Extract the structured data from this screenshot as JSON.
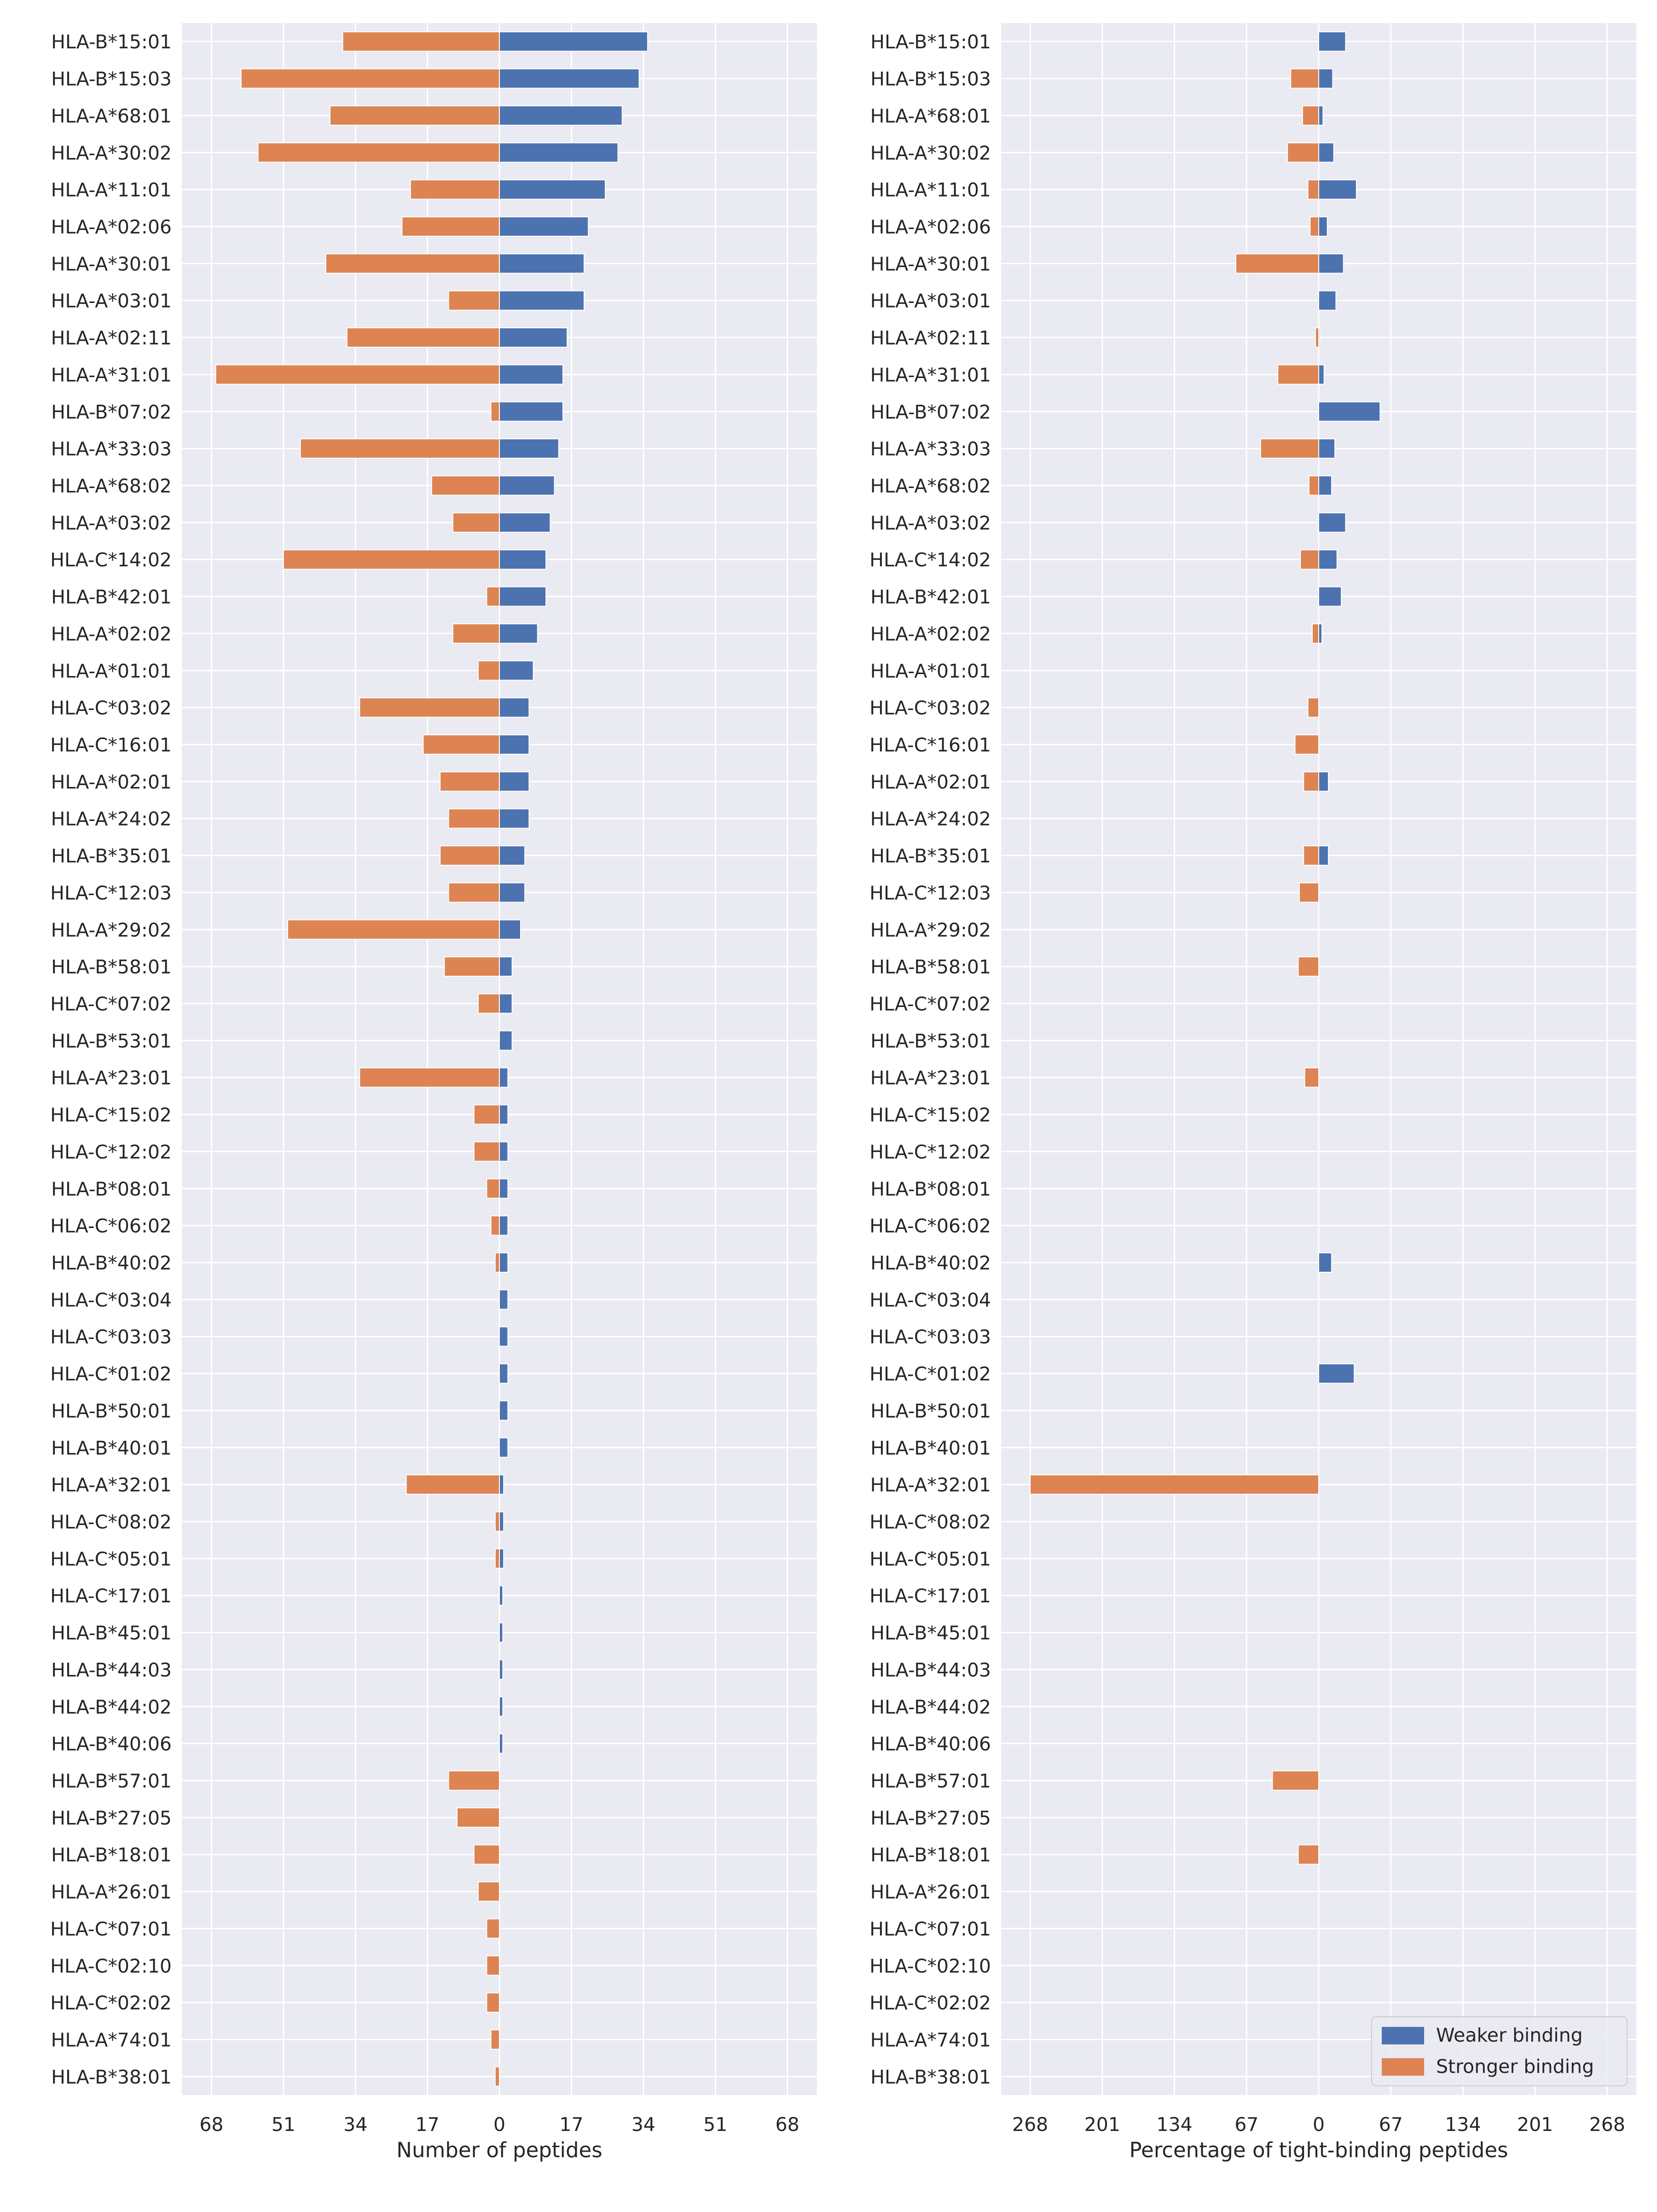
{
  "chart_data": [
    {
      "type": "bar",
      "orientation": "horizontal-diverging",
      "xlabel": "Number of peptides",
      "xlim": [
        -75,
        75
      ],
      "xticks": [
        -68,
        -51,
        -34,
        -17,
        0,
        17,
        34,
        51,
        68
      ],
      "xtick_labels": [
        "68",
        "51",
        "34",
        "17",
        "0",
        "17",
        "34",
        "51",
        "68"
      ],
      "grid": true,
      "categories": [
        "HLA-B*15:01",
        "HLA-B*15:03",
        "HLA-A*68:01",
        "HLA-A*30:02",
        "HLA-A*11:01",
        "HLA-A*02:06",
        "HLA-A*30:01",
        "HLA-A*03:01",
        "HLA-A*02:11",
        "HLA-A*31:01",
        "HLA-B*07:02",
        "HLA-A*33:03",
        "HLA-A*68:02",
        "HLA-A*03:02",
        "HLA-C*14:02",
        "HLA-B*42:01",
        "HLA-A*02:02",
        "HLA-A*01:01",
        "HLA-C*03:02",
        "HLA-C*16:01",
        "HLA-A*02:01",
        "HLA-A*24:02",
        "HLA-B*35:01",
        "HLA-C*12:03",
        "HLA-A*29:02",
        "HLA-B*58:01",
        "HLA-C*07:02",
        "HLA-B*53:01",
        "HLA-A*23:01",
        "HLA-C*15:02",
        "HLA-C*12:02",
        "HLA-B*08:01",
        "HLA-C*06:02",
        "HLA-B*40:02",
        "HLA-C*03:04",
        "HLA-C*03:03",
        "HLA-C*01:02",
        "HLA-B*50:01",
        "HLA-B*40:01",
        "HLA-A*32:01",
        "HLA-C*08:02",
        "HLA-C*05:01",
        "HLA-C*17:01",
        "HLA-B*45:01",
        "HLA-B*44:03",
        "HLA-B*44:02",
        "HLA-B*40:06",
        "HLA-B*57:01",
        "HLA-B*27:05",
        "HLA-B*18:01",
        "HLA-A*26:01",
        "HLA-C*07:01",
        "HLA-C*02:10",
        "HLA-C*02:02",
        "HLA-A*74:01",
        "HLA-B*38:01"
      ],
      "series": [
        {
          "name": "Weaker binding",
          "color": "#4c72b0",
          "values": [
            35,
            33,
            29,
            28,
            25,
            21,
            20,
            20,
            16,
            15,
            15,
            14,
            13,
            12,
            11,
            11,
            9,
            8,
            7,
            7,
            7,
            7,
            6,
            6,
            5,
            3,
            3,
            3,
            2,
            2,
            2,
            2,
            2,
            2,
            2,
            2,
            2,
            2,
            2,
            1,
            1,
            1,
            0.8,
            0.8,
            0.8,
            0.8,
            0.8,
            0,
            0,
            0,
            0,
            0,
            0,
            0,
            0,
            0
          ]
        },
        {
          "name": "Stronger binding",
          "color": "#dd8452",
          "values": [
            37,
            61,
            40,
            57,
            21,
            23,
            41,
            12,
            36,
            67,
            2,
            47,
            16,
            11,
            51,
            3,
            11,
            5,
            33,
            18,
            14,
            12,
            14,
            12,
            50,
            13,
            5,
            0,
            33,
            6,
            6,
            3,
            2,
            1,
            0,
            0,
            0,
            0,
            0,
            22,
            1,
            1,
            0,
            0,
            0,
            0,
            0,
            12,
            10,
            6,
            5,
            3,
            3,
            3,
            2,
            1
          ]
        }
      ]
    },
    {
      "type": "bar",
      "orientation": "horizontal-diverging",
      "xlabel": "Percentage of tight-binding peptides",
      "xlim": [
        -295,
        295
      ],
      "xticks": [
        -268,
        -201,
        -134,
        -67,
        0,
        67,
        134,
        201,
        268
      ],
      "xtick_labels": [
        "268",
        "201",
        "134",
        "67",
        "0",
        "67",
        "134",
        "201",
        "268"
      ],
      "grid": true,
      "legend": {
        "position": "lower right",
        "entries": [
          "Weaker binding",
          "Stronger binding"
        ]
      },
      "categories": [
        "HLA-B*15:01",
        "HLA-B*15:03",
        "HLA-A*68:01",
        "HLA-A*30:02",
        "HLA-A*11:01",
        "HLA-A*02:06",
        "HLA-A*30:01",
        "HLA-A*03:01",
        "HLA-A*02:11",
        "HLA-A*31:01",
        "HLA-B*07:02",
        "HLA-A*33:03",
        "HLA-A*68:02",
        "HLA-A*03:02",
        "HLA-C*14:02",
        "HLA-B*42:01",
        "HLA-A*02:02",
        "HLA-A*01:01",
        "HLA-C*03:02",
        "HLA-C*16:01",
        "HLA-A*02:01",
        "HLA-A*24:02",
        "HLA-B*35:01",
        "HLA-C*12:03",
        "HLA-A*29:02",
        "HLA-B*58:01",
        "HLA-C*07:02",
        "HLA-B*53:01",
        "HLA-A*23:01",
        "HLA-C*15:02",
        "HLA-C*12:02",
        "HLA-B*08:01",
        "HLA-C*06:02",
        "HLA-B*40:02",
        "HLA-C*03:04",
        "HLA-C*03:03",
        "HLA-C*01:02",
        "HLA-B*50:01",
        "HLA-B*40:01",
        "HLA-A*32:01",
        "HLA-C*08:02",
        "HLA-C*05:01",
        "HLA-C*17:01",
        "HLA-B*45:01",
        "HLA-B*44:03",
        "HLA-B*44:02",
        "HLA-B*40:06",
        "HLA-B*57:01",
        "HLA-B*27:05",
        "HLA-B*18:01",
        "HLA-A*26:01",
        "HLA-C*07:01",
        "HLA-C*02:10",
        "HLA-C*02:02",
        "HLA-A*74:01",
        "HLA-B*38:01"
      ],
      "series": [
        {
          "name": "Weaker binding",
          "color": "#4c72b0",
          "values": [
            25,
            13,
            4,
            14,
            35,
            8,
            23,
            16,
            1,
            5,
            57,
            15,
            12,
            25,
            17,
            21,
            3,
            0,
            0,
            0,
            9,
            0,
            9,
            0,
            0,
            0,
            0,
            0,
            0,
            0,
            0,
            0,
            0,
            12,
            0,
            0,
            33,
            0,
            0,
            0,
            0,
            0,
            0,
            0,
            0,
            0,
            0,
            0,
            0,
            0,
            0,
            0,
            0,
            0,
            0,
            0
          ]
        },
        {
          "name": "Stronger binding",
          "color": "#dd8452",
          "values": [
            0,
            26,
            15,
            29,
            10,
            8,
            77,
            0,
            3,
            38,
            0,
            54,
            9,
            0,
            17,
            0,
            6,
            0,
            10,
            22,
            14,
            0,
            14,
            18,
            0,
            19,
            0,
            0,
            13,
            0,
            0,
            0,
            0,
            0,
            0,
            0,
            0,
            0,
            0,
            268,
            0,
            0,
            0,
            0,
            0,
            0,
            0,
            43,
            0,
            19,
            0,
            0,
            0,
            0,
            0,
            0
          ]
        }
      ]
    }
  ]
}
